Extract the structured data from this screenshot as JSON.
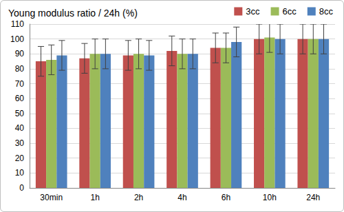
{
  "chart_data": {
    "type": "bar",
    "title": "Young modulus ratio / 24h (%)",
    "categories": [
      "30min",
      "1h",
      "2h",
      "4h",
      "6h",
      "10h",
      "24h"
    ],
    "series": [
      {
        "name": "3cc",
        "color": "#c0504d",
        "values": [
          85,
          87,
          89,
          92,
          94,
          100,
          100
        ],
        "errors": [
          10,
          10,
          10,
          10,
          10,
          10,
          10
        ]
      },
      {
        "name": "6cc",
        "color": "#9bbb59",
        "values": [
          86,
          90,
          90,
          90,
          94,
          101,
          100
        ],
        "errors": [
          10,
          10,
          10,
          10,
          10,
          10,
          10
        ]
      },
      {
        "name": "8cc",
        "color": "#4f81bd",
        "values": [
          89,
          90,
          89,
          90,
          98,
          100,
          100
        ],
        "errors": [
          10,
          10,
          10,
          10,
          10,
          10,
          10
        ]
      }
    ],
    "ylim": [
      0,
      110
    ],
    "yticks": [
      0,
      10,
      20,
      30,
      40,
      50,
      60,
      70,
      80,
      90,
      100,
      110
    ],
    "grid": true,
    "legend": "top-right"
  }
}
